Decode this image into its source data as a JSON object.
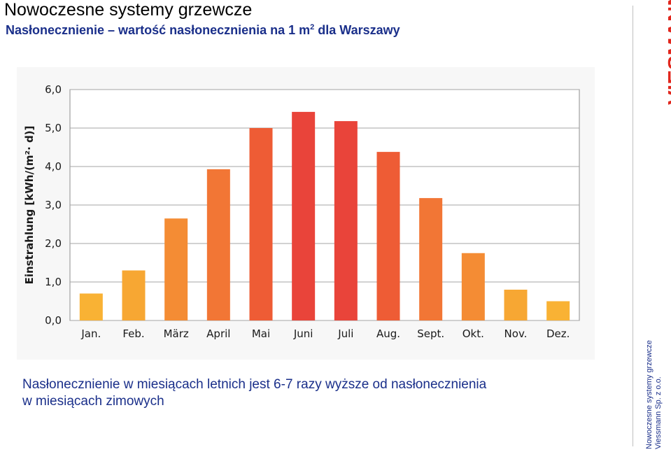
{
  "header": {
    "title": "Nowoczesne systemy grzewcze",
    "subtitle_main": "Nasłonecznienie – wartość nasłonecznienia na 1 m",
    "subtitle_sup": "2",
    "subtitle_end": " dla Warszawy"
  },
  "statement": {
    "line1": "Nasłonecznienie w miesiącach letnich jest 6-7 razy wyższe od nasłonecznienia",
    "line2": "w miesiącach zimowych"
  },
  "brand": {
    "logo_text": "VIESMANN",
    "logo_color": "#e1261c",
    "footer_line1": "Nowoczesne systemy grzewcze",
    "footer_line2": "Viessmann Sp. z o.o."
  },
  "colors": {
    "subtitle": "#1a2f8a",
    "bar_scale": [
      "#f9b234",
      "#f7a733",
      "#f48c34",
      "#f27635",
      "#ee5c35",
      "#e9443a",
      "#e9443a",
      "#ee5c35",
      "#f27635",
      "#f48c34",
      "#f7a733",
      "#f9b234"
    ]
  },
  "chart_data": {
    "type": "bar",
    "ylabel": "Einstrahlung [kWh/(m²· d)]",
    "categories": [
      "Jan.",
      "Feb.",
      "März",
      "April",
      "Mai",
      "Juni",
      "Juli",
      "Aug.",
      "Sept.",
      "Okt.",
      "Nov.",
      "Dez."
    ],
    "values": [
      0.7,
      1.3,
      2.65,
      3.93,
      5.0,
      5.42,
      5.18,
      4.38,
      3.18,
      1.75,
      0.8,
      0.5
    ],
    "ylim": [
      0,
      6
    ],
    "yticks": [
      "0,0",
      "1,0",
      "2,0",
      "3,0",
      "4,0",
      "5,0",
      "6,0"
    ],
    "grid": true
  }
}
